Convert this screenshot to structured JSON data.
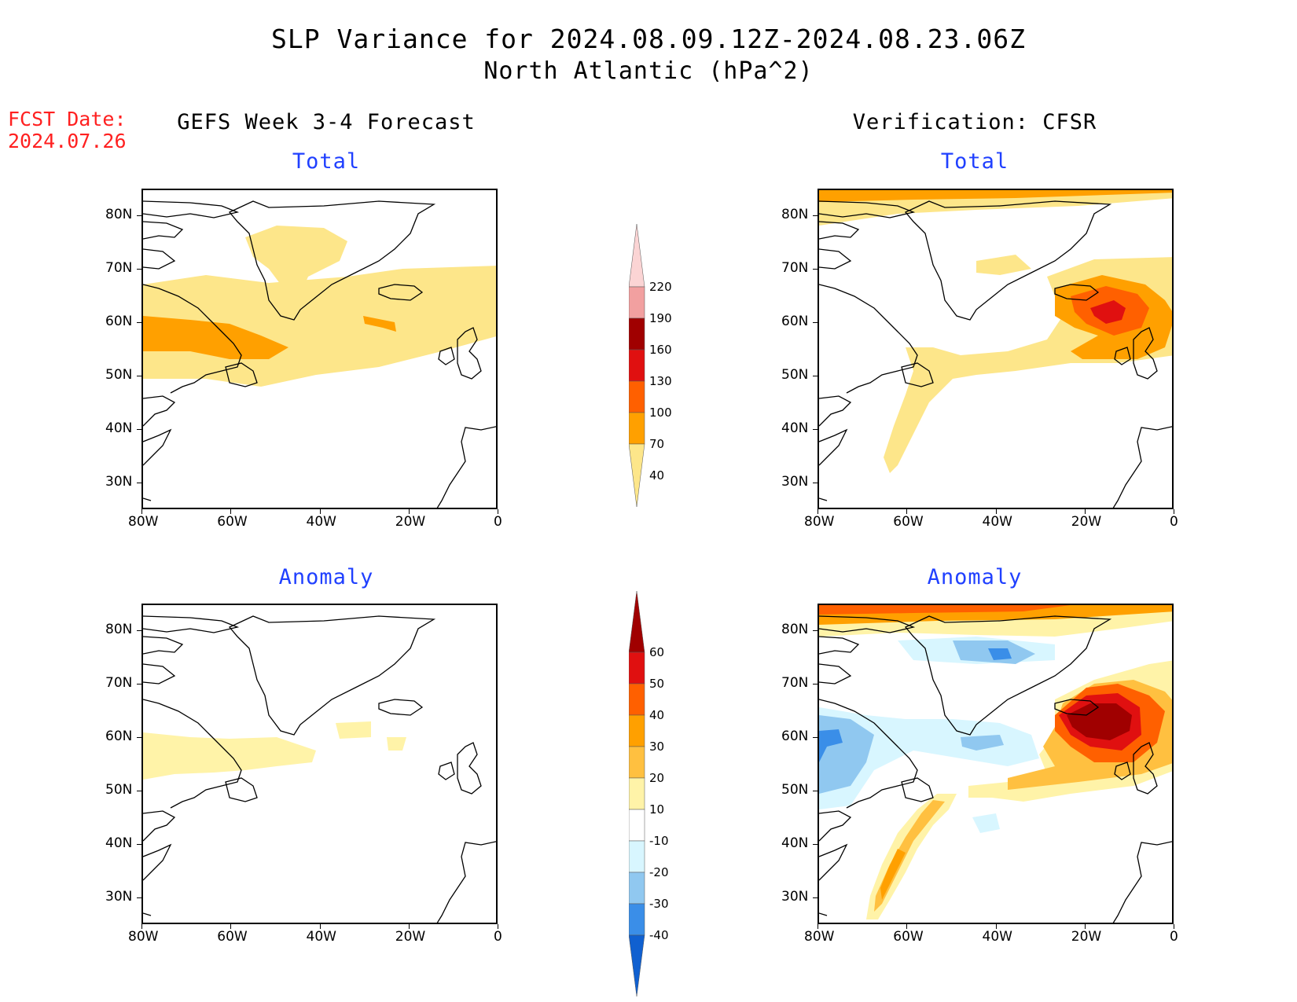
{
  "title": {
    "line1": "SLP Variance for 2024.08.09.12Z-2024.08.23.06Z",
    "line2": "North Atlantic (hPa^2)"
  },
  "fcst_date": {
    "line1": "FCST Date:",
    "line2": "2024.07.26"
  },
  "headers": {
    "left": "GEFS Week 3-4 Forecast",
    "right": "Verification: CFSR"
  },
  "subtitles": {
    "total": "Total",
    "anomaly": "Anomaly"
  },
  "axes": {
    "lat_labels": [
      "80N",
      "70N",
      "60N",
      "50N",
      "40N",
      "30N"
    ],
    "lon_labels": [
      "80W",
      "60W",
      "40W",
      "20W",
      "0"
    ]
  },
  "colorbar_total": {
    "levels": [
      "220",
      "190",
      "160",
      "130",
      "100",
      "70",
      "40"
    ],
    "colors": [
      "#fbd4d4",
      "#f2a0a0",
      "#a00000",
      "#e01010",
      "#ff6000",
      "#ffa000",
      "#fde68a"
    ]
  },
  "colorbar_anomaly": {
    "levels": [
      "60",
      "50",
      "40",
      "30",
      "20",
      "10",
      "-10",
      "-20",
      "-30",
      "-40"
    ],
    "colors": [
      "#a00000",
      "#e01010",
      "#ff6000",
      "#ffa000",
      "#ffc040",
      "#fff3a8",
      "#ffffff",
      "#d8f6ff",
      "#90c8f0",
      "#3a8ee8",
      "#1060d0"
    ]
  },
  "chart_data": [
    {
      "type": "heatmap",
      "title": "Total",
      "panel": "GEFS Week 3-4 Forecast",
      "x_range": [
        -80,
        0
      ],
      "y_range": [
        25,
        85
      ],
      "features": [
        {
          "region": "Labrador Sea / southern Greenland band",
          "value_range": "70-100"
        },
        {
          "region": "Central Greenland",
          "value_range": "40-70"
        },
        {
          "region": "Mid-Atlantic 45-65N",
          "value_range": "40-70"
        },
        {
          "region": "near 30W 60N",
          "value_range": "70-100"
        }
      ]
    },
    {
      "type": "heatmap",
      "title": "Total",
      "panel": "Verification: CFSR",
      "x_range": [
        -80,
        0
      ],
      "y_range": [
        25,
        85
      ],
      "features": [
        {
          "region": "far north 80-85N",
          "value_range": "40-100"
        },
        {
          "region": "Iceland / NE Atlantic max near 15W 62N",
          "value_range": "100-160"
        },
        {
          "region": "Newfoundland to mid-Atlantic band",
          "value_range": "40-70"
        }
      ]
    },
    {
      "type": "heatmap",
      "title": "Anomaly",
      "panel": "GEFS Week 3-4 Forecast",
      "x_range": [
        -80,
        0
      ],
      "y_range": [
        25,
        85
      ],
      "features": [
        {
          "region": "Labrador Sea 55-62N",
          "value_range": "10-20"
        },
        {
          "region": "near 30W 62N",
          "value_range": "10-20"
        }
      ]
    },
    {
      "type": "heatmap",
      "title": "Anomaly",
      "panel": "Verification: CFSR",
      "x_range": [
        -80,
        0
      ],
      "y_range": [
        25,
        85
      ],
      "features": [
        {
          "region": "far north 82-85N",
          "value_range": "20-60"
        },
        {
          "region": "NE Atlantic max near 15W 62N",
          "value_range": ">60"
        },
        {
          "region": "Greenland interior near 40W 77N",
          "value_range": "-30 to -20"
        },
        {
          "region": "Labrador / Hudson 55-62N",
          "value_range": "-40 to -20"
        },
        {
          "region": "western Atlantic 30-45N, 60-70W",
          "value_range": "20-40"
        }
      ]
    }
  ]
}
